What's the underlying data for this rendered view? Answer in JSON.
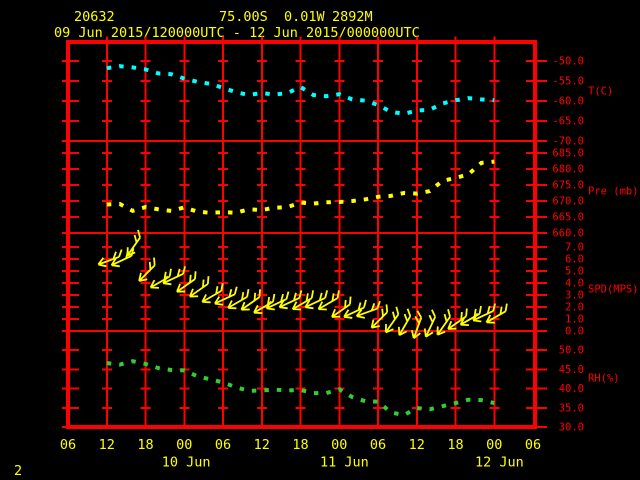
{
  "header": {
    "station_id": "20632",
    "latitude": "75.00S",
    "longitude": "0.01W",
    "elevation": "2892M",
    "period": "09 Jun 2015/120000UTC - 12 Jun 2015/000000UTC"
  },
  "footer": {
    "page_label": "2"
  },
  "colors": {
    "background": "#000000",
    "grid": "#ff0000",
    "header_text": "#ffff00",
    "temperature": "#00ffff",
    "pressure": "#ffff00",
    "wind": "#ffff00",
    "humidity": "#33cc33"
  },
  "chart_data": {
    "type": "line",
    "subtype": "meteogram",
    "grid": true,
    "legend_position": "right-axis-labels",
    "time_axis": {
      "start_label": "09 Jun 2015 06UTC",
      "end_label": "12 Jun 2015 06UTC",
      "tick_interval_hours": 6,
      "tick_labels": [
        {
          "t": 0,
          "label": "06"
        },
        {
          "t": 6,
          "label": "12"
        },
        {
          "t": 12,
          "label": "18"
        },
        {
          "t": 18,
          "label": "00"
        },
        {
          "t": 24,
          "label": "06"
        },
        {
          "t": 30,
          "label": "12"
        },
        {
          "t": 36,
          "label": "18"
        },
        {
          "t": 42,
          "label": "00"
        },
        {
          "t": 48,
          "label": "06"
        },
        {
          "t": 54,
          "label": "12"
        },
        {
          "t": 60,
          "label": "18"
        },
        {
          "t": 66,
          "label": "00"
        },
        {
          "t": 72,
          "label": "06"
        }
      ],
      "date_labels": [
        {
          "t": 18.3,
          "label": "10 Jun"
        },
        {
          "t": 42.8,
          "label": "11 Jun"
        },
        {
          "t": 66.8,
          "label": "12 Jun"
        }
      ]
    },
    "sample_hours": [
      6,
      8,
      10,
      12,
      14,
      16,
      18,
      20,
      22,
      24,
      26,
      28,
      30,
      32,
      34,
      36,
      38,
      40,
      42,
      44,
      46,
      48,
      50,
      52,
      54,
      56,
      58,
      60,
      62,
      64,
      66
    ],
    "panels": [
      {
        "id": "temperature",
        "unit_label": "T(C)",
        "unit_label_value": -57.5,
        "color": "#00ffff",
        "style": "dotted-line",
        "boundary_value": -70,
        "ticks": [
          {
            "value": -50,
            "label": "-50.0"
          },
          {
            "value": -55,
            "label": "-55.0"
          },
          {
            "value": -60,
            "label": "-60.0"
          },
          {
            "value": -65,
            "label": "-65.0"
          },
          {
            "value": -70,
            "label": "-70.0"
          }
        ],
        "values": [
          -51.8,
          -51.3,
          -51.6,
          -52.1,
          -53.1,
          -53.3,
          -54.4,
          -55.2,
          -55.7,
          -56.7,
          -57.8,
          -58.5,
          -58.0,
          -58.4,
          -58.0,
          -56.5,
          -58.5,
          -58.8,
          -58.3,
          -59.6,
          -59.9,
          -61.0,
          -62.7,
          -63.2,
          -62.4,
          -62.2,
          -60.6,
          -59.8,
          -59.3,
          -59.6,
          -59.8
        ]
      },
      {
        "id": "pressure",
        "unit_label": "Pre (mb)",
        "unit_label_value": 673.1,
        "color": "#ffff00",
        "style": "dotted-line",
        "boundary_value": 660,
        "ticks": [
          {
            "value": 685,
            "label": "685.0"
          },
          {
            "value": 680,
            "label": "680.0"
          },
          {
            "value": 675,
            "label": "675.0"
          },
          {
            "value": 670,
            "label": "670.0"
          },
          {
            "value": 665,
            "label": "665.0"
          },
          {
            "value": 660,
            "label": "660.0"
          }
        ],
        "values": [
          668.9,
          669.1,
          666.9,
          668.1,
          667.4,
          666.9,
          668.0,
          666.7,
          666.3,
          666.5,
          666.3,
          667.4,
          667.2,
          667.9,
          668.1,
          669.5,
          669.2,
          669.6,
          669.7,
          670.0,
          670.5,
          671.3,
          671.6,
          672.5,
          672.3,
          673.1,
          676.3,
          677.2,
          678.3,
          681.9,
          682.3
        ]
      },
      {
        "id": "wind-speed",
        "unit_label": "SPD(MPS)",
        "unit_label_value": 3.5,
        "color": "#ffff00",
        "style": "wind-arrows",
        "boundary_value": 0,
        "ticks": [
          {
            "value": 7,
            "label": "7.0"
          },
          {
            "value": 6,
            "label": "6.0"
          },
          {
            "value": 5,
            "label": "5.0"
          },
          {
            "value": 4,
            "label": "4.0"
          },
          {
            "value": 3,
            "label": "3.0"
          },
          {
            "value": 2,
            "label": "2.0"
          },
          {
            "value": 1,
            "label": "1.0"
          },
          {
            "value": 0,
            "label": "0.0"
          }
        ],
        "values": [
          5.8,
          5.8,
          6.9,
          4.7,
          4.0,
          4.3,
          3.7,
          3.3,
          2.8,
          2.6,
          2.3,
          2.2,
          1.9,
          2.2,
          2.3,
          2.2,
          2.3,
          2.2,
          1.6,
          1.5,
          1.5,
          0.8,
          0.5,
          0.3,
          0.1,
          0.2,
          0.3,
          0.6,
          0.9,
          1.2,
          1.1
        ],
        "barb_rotations_deg": [
          160,
          155,
          125,
          135,
          150,
          155,
          145,
          145,
          150,
          155,
          150,
          145,
          150,
          155,
          155,
          150,
          155,
          150,
          145,
          155,
          160,
          135,
          125,
          120,
          110,
          115,
          125,
          145,
          150,
          155,
          150
        ]
      },
      {
        "id": "relative-humidity",
        "unit_label": "RH(%)",
        "unit_label_value": 42.7,
        "color": "#33cc33",
        "style": "dotted-line",
        "boundary_value": 30,
        "ticks": [
          {
            "value": 50,
            "label": "50.0"
          },
          {
            "value": 45,
            "label": "45.0"
          },
          {
            "value": 40,
            "label": "40.0"
          },
          {
            "value": 35,
            "label": "35.0"
          },
          {
            "value": 30,
            "label": "30.0"
          }
        ],
        "values": [
          46.6,
          46.2,
          47.1,
          46.4,
          45.3,
          44.8,
          44.7,
          43.2,
          42.4,
          41.6,
          40.3,
          39.4,
          39.5,
          39.7,
          39.5,
          39.6,
          38.8,
          38.8,
          39.8,
          37.8,
          36.7,
          36.6,
          33.8,
          33.1,
          34.9,
          34.6,
          35.4,
          36.2,
          37.1,
          37.0,
          36.2
        ]
      }
    ]
  }
}
